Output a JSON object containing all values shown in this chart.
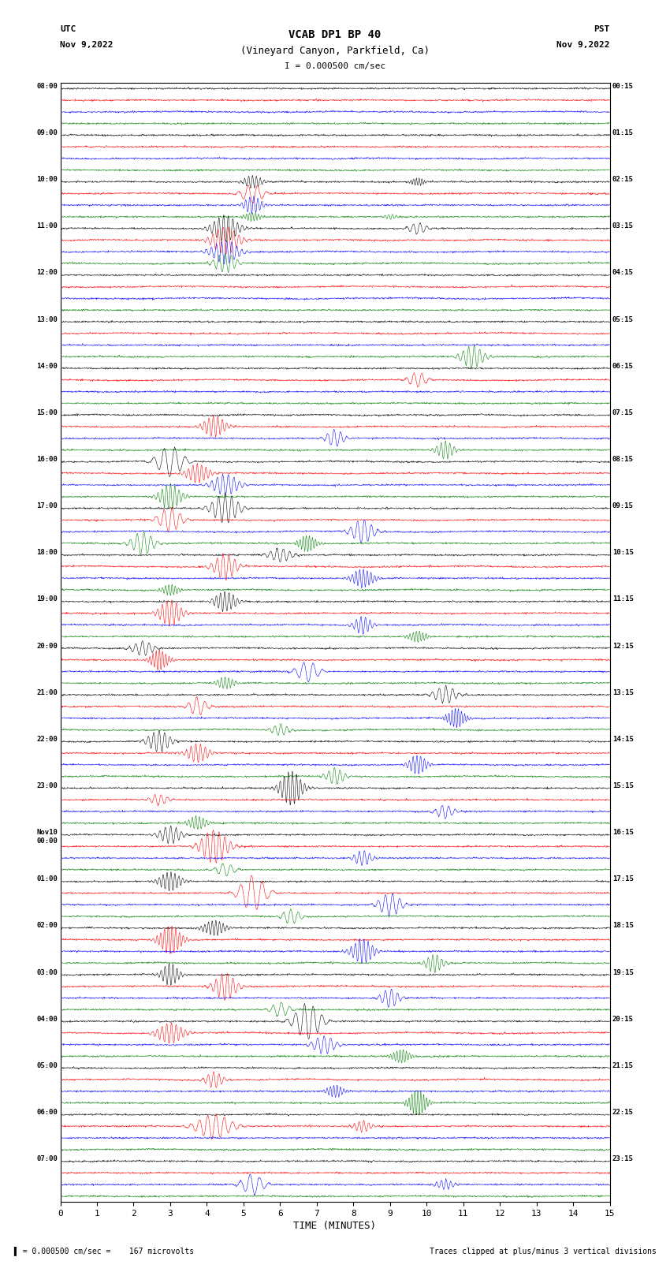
{
  "title_line1": "VCAB DP1 BP 40",
  "title_line2": "(Vineyard Canyon, Parkfield, Ca)",
  "scale_text": "I = 0.000500 cm/sec",
  "utc_label": "UTC",
  "pst_label": "PST",
  "date_left": "Nov 9,2022",
  "date_right": "Nov 9,2022",
  "xlabel": "TIME (MINUTES)",
  "footer_left": "= 0.000500 cm/sec =    167 microvolts",
  "footer_right": "Traces clipped at plus/minus 3 vertical divisions",
  "left_times": [
    "08:00",
    "09:00",
    "10:00",
    "11:00",
    "12:00",
    "13:00",
    "14:00",
    "15:00",
    "16:00",
    "17:00",
    "18:00",
    "19:00",
    "20:00",
    "21:00",
    "22:00",
    "23:00",
    "Nov10\n00:00",
    "01:00",
    "02:00",
    "03:00",
    "04:00",
    "05:00",
    "06:00",
    "07:00"
  ],
  "right_times": [
    "00:15",
    "01:15",
    "02:15",
    "03:15",
    "04:15",
    "05:15",
    "06:15",
    "07:15",
    "08:15",
    "09:15",
    "10:15",
    "11:15",
    "12:15",
    "13:15",
    "14:15",
    "15:15",
    "16:15",
    "17:15",
    "18:15",
    "19:15",
    "20:15",
    "21:15",
    "22:15",
    "23:15"
  ],
  "n_rows": 24,
  "n_traces_per_row": 4,
  "trace_colors": [
    "black",
    "red",
    "blue",
    "green"
  ],
  "bg_color": "white",
  "minutes_ticks": [
    0,
    1,
    2,
    3,
    4,
    5,
    6,
    7,
    8,
    9,
    10,
    11,
    12,
    13,
    14,
    15
  ],
  "xmin": 0,
  "xmax": 15
}
